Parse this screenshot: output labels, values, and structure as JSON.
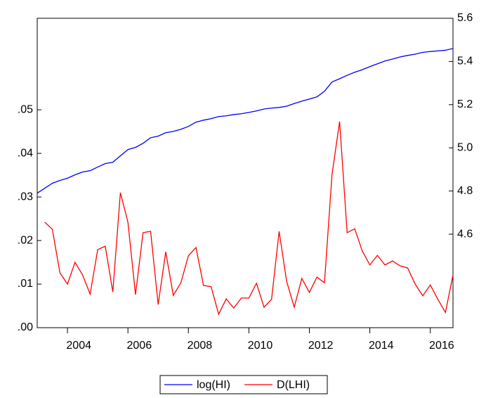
{
  "chart_data": {
    "type": "line",
    "x": [
      2003,
      2003.25,
      2003.5,
      2003.75,
      2004,
      2004.25,
      2004.5,
      2004.75,
      2005,
      2005.25,
      2005.5,
      2005.75,
      2006,
      2006.25,
      2006.5,
      2006.75,
      2007,
      2007.25,
      2007.5,
      2007.75,
      2008,
      2008.25,
      2008.5,
      2008.75,
      2009,
      2009.25,
      2009.5,
      2009.75,
      2010,
      2010.25,
      2010.5,
      2010.75,
      2011,
      2011.25,
      2011.5,
      2011.75,
      2012,
      2012.25,
      2012.5,
      2012.75,
      2013,
      2013.25,
      2013.5,
      2013.75,
      2014,
      2014.25,
      2014.5,
      2014.75,
      2015,
      2015.25,
      2015.5,
      2015.75,
      2016,
      2016.25,
      2016.5,
      2016.75
    ],
    "xlim": [
      2003,
      2016.75
    ],
    "xticks": [
      2004,
      2006,
      2008,
      2010,
      2012,
      2014,
      2016
    ],
    "ylim": [
      0,
      0.071
    ],
    "yticks": [
      {
        "value": 0,
        "label": ".00"
      },
      {
        "value": 0.01,
        "label": ".01"
      },
      {
        "value": 0.02,
        "label": ".02"
      },
      {
        "value": 0.03,
        "label": ".03"
      },
      {
        "value": 0.04,
        "label": ".04"
      },
      {
        "value": 0.05,
        "label": ".05"
      }
    ],
    "y2lim": [
      4.167,
      5.6
    ],
    "y2ticks": [
      4.6,
      4.8,
      {
        "value": 5,
        "label": "5.0"
      },
      5.2,
      5.4,
      5.6
    ],
    "legend": "bottom",
    "series": [
      {
        "name": "log(HI)",
        "color": "#0000ff",
        "axis": "y2",
        "values": [
          4.79,
          4.813,
          4.836,
          4.849,
          4.859,
          4.875,
          4.888,
          4.894,
          4.911,
          4.927,
          4.933,
          4.963,
          4.992,
          5.002,
          5.021,
          5.047,
          5.054,
          5.07,
          5.076,
          5.086,
          5.099,
          5.119,
          5.128,
          5.135,
          5.145,
          5.148,
          5.154,
          5.158,
          5.164,
          5.171,
          5.18,
          5.184,
          5.187,
          5.193,
          5.205,
          5.216,
          5.226,
          5.236,
          5.262,
          5.305,
          5.32,
          5.336,
          5.35,
          5.362,
          5.376,
          5.389,
          5.402,
          5.411,
          5.421,
          5.428,
          5.434,
          5.442,
          5.446,
          5.449,
          5.452,
          5.46
        ]
      },
      {
        "name": "D(LHI)",
        "color": "#ff0000",
        "values": [
          null,
          0.0242,
          0.0226,
          0.0126,
          0.01,
          0.015,
          0.0121,
          0.0077,
          0.0179,
          0.0187,
          0.0082,
          0.031,
          0.0242,
          0.0076,
          0.0218,
          0.0221,
          0.0053,
          0.0174,
          0.0074,
          0.0103,
          0.0165,
          0.0184,
          0.0097,
          0.0094,
          0.0031,
          0.0066,
          0.0045,
          0.0068,
          0.0068,
          0.0102,
          0.0047,
          0.0065,
          0.0221,
          0.0106,
          0.0047,
          0.0113,
          0.0081,
          0.0116,
          0.0103,
          0.0352,
          0.0473,
          0.0218,
          0.0227,
          0.0176,
          0.0144,
          0.0166,
          0.0144,
          0.0153,
          0.0142,
          0.0137,
          0.01,
          0.0073,
          0.0098,
          0.0065,
          0.0035,
          0.0121
        ]
      }
    ]
  }
}
